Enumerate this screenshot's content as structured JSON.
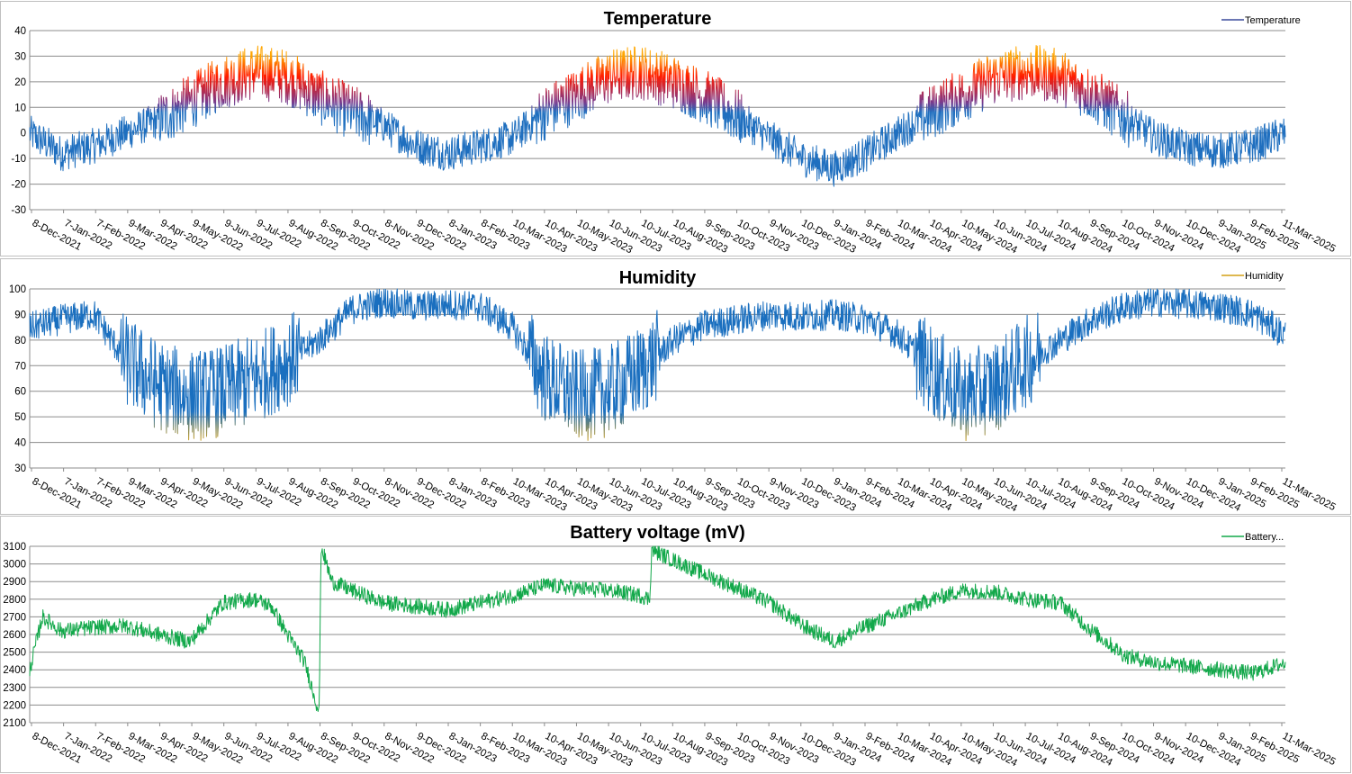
{
  "chart_data": [
    {
      "type": "line",
      "title": "Temperature",
      "legend": "Temperature",
      "legend_placement": "top-right",
      "ylim": [
        -30,
        40
      ],
      "yticks": [
        -30,
        -20,
        -10,
        0,
        10,
        20,
        30,
        40
      ],
      "grid": true,
      "x_range": [
        "2021-12-08",
        "2025-03-11"
      ],
      "xtick_labels": [
        "8-Dec-2021",
        "7-Jan-2022",
        "7-Feb-2022",
        "9-Mar-2022",
        "9-Apr-2022",
        "9-May-2022",
        "9-Jun-2022",
        "9-Jul-2022",
        "9-Aug-2022",
        "8-Sep-2022",
        "9-Oct-2022",
        "8-Nov-2022",
        "9-Dec-2022",
        "8-Jan-2023",
        "8-Feb-2023",
        "10-Mar-2023",
        "10-Apr-2023",
        "10-May-2023",
        "10-Jun-2023",
        "10-Jul-2023",
        "10-Aug-2023",
        "9-Sep-2023",
        "10-Oct-2023",
        "9-Nov-2023",
        "10-Dec-2023",
        "9-Jan-2024",
        "9-Feb-2024",
        "10-Mar-2024",
        "10-Apr-2024",
        "10-May-2024",
        "10-Jun-2024",
        "10-Jul-2024",
        "10-Aug-2024",
        "9-Sep-2024",
        "10-Oct-2024",
        "9-Nov-2024",
        "10-Dec-2024",
        "9-Jan-2025",
        "9-Feb-2025",
        "11-Mar-2025"
      ],
      "colors": {
        "low": "#1f6fbf",
        "mid": "#7a3a8c",
        "high": "#ff1a00",
        "peak": "#ffa500"
      },
      "series": [
        {
          "name": "Temperature",
          "x": [
            "2021-12-08",
            "2022-01-07",
            "2022-02-07",
            "2022-03-09",
            "2022-04-09",
            "2022-05-09",
            "2022-06-09",
            "2022-07-09",
            "2022-08-09",
            "2022-09-08",
            "2022-10-09",
            "2022-11-08",
            "2022-12-09",
            "2023-01-08",
            "2023-02-08",
            "2023-03-10",
            "2023-04-10",
            "2023-05-10",
            "2023-06-10",
            "2023-07-10",
            "2023-08-10",
            "2023-09-09",
            "2023-10-10",
            "2023-11-09",
            "2023-12-10",
            "2024-01-09",
            "2024-02-09",
            "2024-03-10",
            "2024-04-10",
            "2024-05-10",
            "2024-06-10",
            "2024-07-10",
            "2024-08-10",
            "2024-09-09",
            "2024-10-10",
            "2024-11-09",
            "2024-12-10",
            "2025-01-09",
            "2025-02-09",
            "2025-03-11"
          ],
          "y": [
            0,
            -8,
            -5,
            0,
            5,
            12,
            20,
            24,
            22,
            14,
            8,
            3,
            -5,
            -8,
            -5,
            -2,
            8,
            15,
            22,
            24,
            20,
            14,
            6,
            -2,
            -10,
            -14,
            -8,
            0,
            8,
            15,
            22,
            24,
            22,
            15,
            6,
            -2,
            -6,
            -7,
            -5,
            0
          ]
        }
      ]
    },
    {
      "type": "line",
      "title": "Humidity",
      "legend": "Humidity",
      "legend_placement": "top-right",
      "ylim": [
        30,
        100
      ],
      "yticks": [
        30,
        40,
        50,
        60,
        70,
        80,
        90,
        100
      ],
      "grid": true,
      "x_range": [
        "2021-12-08",
        "2025-03-11"
      ],
      "xtick_labels": [
        "8-Dec-2021",
        "7-Jan-2022",
        "7-Feb-2022",
        "9-Mar-2022",
        "9-Apr-2022",
        "9-May-2022",
        "9-Jun-2022",
        "9-Jul-2022",
        "9-Aug-2022",
        "8-Sep-2022",
        "9-Oct-2022",
        "8-Nov-2022",
        "9-Dec-2022",
        "8-Jan-2023",
        "8-Feb-2023",
        "10-Mar-2023",
        "10-Apr-2023",
        "10-May-2023",
        "10-Jun-2023",
        "10-Jul-2023",
        "10-Aug-2023",
        "9-Sep-2023",
        "10-Oct-2023",
        "9-Nov-2023",
        "10-Dec-2023",
        "9-Jan-2024",
        "9-Feb-2024",
        "10-Mar-2024",
        "10-Apr-2024",
        "10-May-2024",
        "10-Jun-2024",
        "10-Jul-2024",
        "10-Aug-2024",
        "9-Sep-2024",
        "10-Oct-2024",
        "9-Nov-2024",
        "10-Dec-2024",
        "9-Jan-2025",
        "9-Feb-2025",
        "11-Mar-2025"
      ],
      "colors": {
        "high": "#1a6fbf",
        "low": "#d4a017"
      },
      "series": [
        {
          "name": "Humidity",
          "x": [
            "2021-12-08",
            "2022-01-07",
            "2022-02-07",
            "2022-03-09",
            "2022-04-09",
            "2022-05-09",
            "2022-06-09",
            "2022-07-09",
            "2022-08-09",
            "2022-09-08",
            "2022-10-09",
            "2022-11-08",
            "2022-12-09",
            "2023-01-08",
            "2023-02-08",
            "2023-03-10",
            "2023-04-10",
            "2023-05-10",
            "2023-06-10",
            "2023-07-10",
            "2023-08-10",
            "2023-09-09",
            "2023-10-10",
            "2023-11-09",
            "2023-12-10",
            "2024-01-09",
            "2024-02-09",
            "2024-03-10",
            "2024-04-10",
            "2024-05-10",
            "2024-06-10",
            "2024-07-10",
            "2024-08-10",
            "2024-09-09",
            "2024-10-10",
            "2024-11-09",
            "2024-12-10",
            "2025-01-09",
            "2025-02-09",
            "2025-03-11"
          ],
          "y": [
            85,
            88,
            90,
            72,
            62,
            58,
            60,
            65,
            72,
            80,
            92,
            95,
            93,
            94,
            93,
            85,
            65,
            58,
            60,
            68,
            80,
            86,
            88,
            90,
            89,
            90,
            88,
            82,
            68,
            58,
            62,
            72,
            80,
            88,
            93,
            95,
            94,
            93,
            90,
            82
          ]
        }
      ]
    },
    {
      "type": "line",
      "title": "Battery voltage (mV)",
      "legend": "Battery...",
      "legend_placement": "top-right",
      "ylim": [
        2100,
        3100
      ],
      "yticks": [
        2100,
        2200,
        2300,
        2400,
        2500,
        2600,
        2700,
        2800,
        2900,
        3000,
        3100
      ],
      "grid": true,
      "x_range": [
        "2021-12-08",
        "2025-03-11"
      ],
      "xtick_labels": [
        "8-Dec-2021",
        "7-Jan-2022",
        "7-Feb-2022",
        "9-Mar-2022",
        "9-Apr-2022",
        "9-May-2022",
        "9-Jun-2022",
        "9-Jul-2022",
        "9-Aug-2022",
        "8-Sep-2022",
        "9-Oct-2022",
        "8-Nov-2022",
        "9-Dec-2022",
        "8-Jan-2023",
        "8-Feb-2023",
        "10-Mar-2023",
        "10-Apr-2023",
        "10-May-2023",
        "10-Jun-2023",
        "10-Jul-2023",
        "10-Aug-2023",
        "9-Sep-2023",
        "10-Oct-2023",
        "9-Nov-2023",
        "10-Dec-2023",
        "9-Jan-2024",
        "9-Feb-2024",
        "10-Mar-2024",
        "10-Apr-2024",
        "10-May-2024",
        "10-Jun-2024",
        "10-Jul-2024",
        "10-Aug-2024",
        "9-Sep-2024",
        "10-Oct-2024",
        "9-Nov-2024",
        "10-Dec-2024",
        "9-Jan-2025",
        "9-Feb-2025",
        "11-Mar-2025"
      ],
      "colors": {
        "line": "#12a84a"
      },
      "series": [
        {
          "name": "Battery...",
          "x": [
            "2021-12-08",
            "2021-12-20",
            "2022-01-07",
            "2022-02-07",
            "2022-03-09",
            "2022-04-09",
            "2022-05-09",
            "2022-06-09",
            "2022-07-09",
            "2022-07-25",
            "2022-08-09",
            "2022-08-25",
            "2022-09-08",
            "2022-09-10",
            "2022-09-20",
            "2022-10-09",
            "2022-11-08",
            "2022-12-09",
            "2023-01-08",
            "2023-02-08",
            "2023-03-10",
            "2023-04-10",
            "2023-05-10",
            "2023-06-10",
            "2023-07-10",
            "2023-07-18",
            "2023-07-20",
            "2023-08-10",
            "2023-09-09",
            "2023-10-10",
            "2023-11-09",
            "2023-12-10",
            "2024-01-09",
            "2024-02-09",
            "2024-03-10",
            "2024-04-10",
            "2024-05-10",
            "2024-06-10",
            "2024-07-10",
            "2024-08-10",
            "2024-09-09",
            "2024-10-10",
            "2024-11-09",
            "2024-12-10",
            "2025-01-09",
            "2025-02-09",
            "2025-03-11"
          ],
          "y": [
            2400,
            2700,
            2620,
            2640,
            2650,
            2600,
            2560,
            2780,
            2800,
            2760,
            2600,
            2450,
            2160,
            3100,
            2900,
            2850,
            2780,
            2760,
            2740,
            2780,
            2820,
            2880,
            2860,
            2850,
            2820,
            2800,
            3080,
            3020,
            2940,
            2860,
            2780,
            2650,
            2560,
            2650,
            2720,
            2800,
            2850,
            2840,
            2800,
            2780,
            2620,
            2480,
            2440,
            2420,
            2400,
            2380,
            2440
          ]
        }
      ]
    }
  ]
}
